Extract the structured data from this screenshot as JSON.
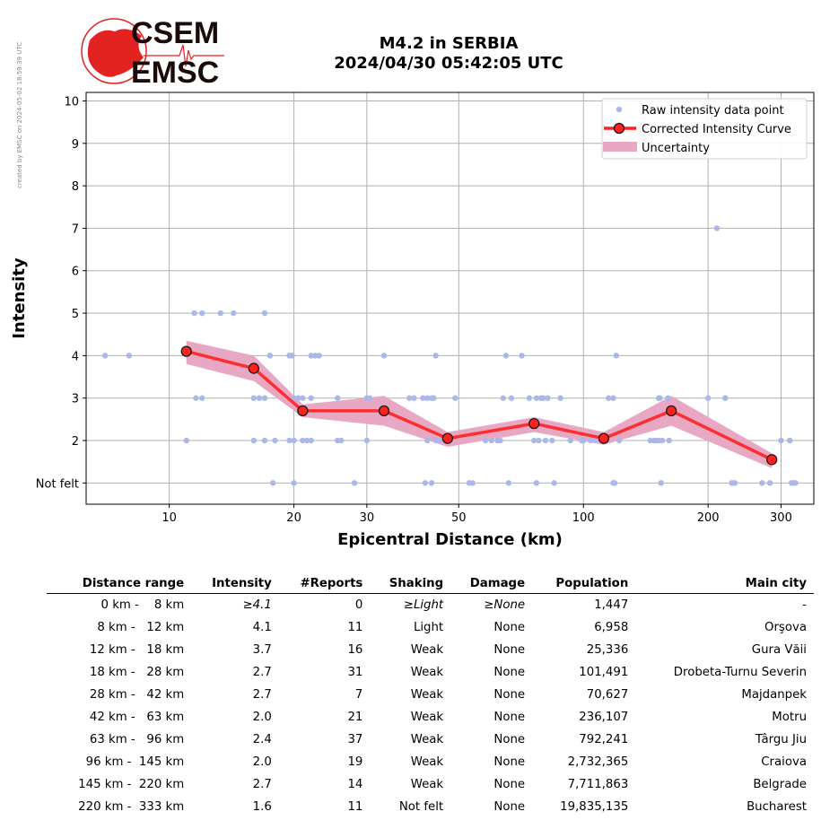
{
  "side_note": "created by EMSC on 2024-05-02 18:59:39 UTC",
  "logo": {
    "line1": "CSEM",
    "line2": "EMSC",
    "accent": "#e32222",
    "text_color": "#1a0a0a"
  },
  "title": {
    "line1": "M4.2 in SERBIA",
    "line2": "2024/04/30 05:42:05 UTC"
  },
  "chart_data": {
    "type": "scatter",
    "xlabel": "Epicentral Distance (km)",
    "ylabel": "Intensity",
    "xscale": "log",
    "xlim": [
      6.3,
      360
    ],
    "ylim": [
      0.5,
      10.2
    ],
    "xticks": [
      10,
      20,
      30,
      50,
      100,
      200,
      300
    ],
    "yticks": [
      {
        "v": 1,
        "label": "Not felt"
      },
      {
        "v": 2,
        "label": "2"
      },
      {
        "v": 3,
        "label": "3"
      },
      {
        "v": 4,
        "label": "4"
      },
      {
        "v": 5,
        "label": "5"
      },
      {
        "v": 6,
        "label": "6"
      },
      {
        "v": 7,
        "label": "7"
      },
      {
        "v": 8,
        "label": "8"
      },
      {
        "v": 9,
        "label": "9"
      },
      {
        "v": 10,
        "label": "10"
      }
    ],
    "grid": true,
    "legend_position": "top-right",
    "legend": [
      "Raw intensity data point",
      "Corrected Intensity Curve",
      "Uncertainty"
    ],
    "colors": {
      "raw": "#a9b8e8",
      "curve": "#ff2020",
      "marker_edge": "#1a1a1a",
      "band": "#e8a8c4",
      "grid": "#b0b0b0"
    },
    "curve": {
      "x": [
        11,
        16,
        21,
        33,
        47,
        76,
        112,
        163,
        285
      ],
      "y": [
        4.1,
        3.7,
        2.7,
        2.7,
        2.05,
        2.4,
        2.05,
        2.7,
        1.55
      ],
      "upper": [
        4.35,
        4.0,
        2.85,
        3.05,
        2.2,
        2.55,
        2.2,
        3.05,
        1.7
      ],
      "lower": [
        3.8,
        3.4,
        2.55,
        2.35,
        1.85,
        2.2,
        1.9,
        2.35,
        1.35
      ]
    },
    "raw": [
      [
        7,
        4
      ],
      [
        8,
        4
      ],
      [
        11,
        2
      ],
      [
        11.5,
        5
      ],
      [
        12,
        5
      ],
      [
        11.6,
        3
      ],
      [
        12,
        3
      ],
      [
        13.3,
        5
      ],
      [
        14.3,
        5
      ],
      [
        16,
        3
      ],
      [
        16,
        2
      ],
      [
        16.5,
        3
      ],
      [
        17,
        5
      ],
      [
        17,
        2
      ],
      [
        17,
        3
      ],
      [
        17.5,
        4
      ],
      [
        17.5,
        4
      ],
      [
        18,
        2
      ],
      [
        17.8,
        1
      ],
      [
        19.5,
        4
      ],
      [
        19.8,
        4
      ],
      [
        19.5,
        2
      ],
      [
        20,
        2
      ],
      [
        20,
        3
      ],
      [
        20.5,
        3
      ],
      [
        21,
        3
      ],
      [
        21,
        2
      ],
      [
        21.5,
        2
      ],
      [
        22,
        2
      ],
      [
        22,
        3
      ],
      [
        22,
        4
      ],
      [
        22.5,
        4
      ],
      [
        23,
        4
      ],
      [
        20,
        1
      ],
      [
        25.5,
        3
      ],
      [
        25.5,
        2
      ],
      [
        26,
        2
      ],
      [
        28,
        1
      ],
      [
        30,
        3
      ],
      [
        30,
        2
      ],
      [
        30.5,
        3
      ],
      [
        33,
        4
      ],
      [
        38,
        3
      ],
      [
        39,
        3
      ],
      [
        41,
        3
      ],
      [
        41.5,
        1
      ],
      [
        42,
        3
      ],
      [
        42,
        2
      ],
      [
        43,
        3
      ],
      [
        43,
        1
      ],
      [
        43.5,
        3
      ],
      [
        44,
        4
      ],
      [
        44,
        2
      ],
      [
        45,
        2
      ],
      [
        49,
        3
      ],
      [
        53,
        1
      ],
      [
        54,
        1
      ],
      [
        58,
        2
      ],
      [
        60,
        2
      ],
      [
        62,
        2
      ],
      [
        63,
        2
      ],
      [
        64,
        3
      ],
      [
        65,
        4
      ],
      [
        66,
        1
      ],
      [
        67,
        3
      ],
      [
        71,
        4
      ],
      [
        74,
        3
      ],
      [
        76,
        2
      ],
      [
        77,
        1
      ],
      [
        77,
        3
      ],
      [
        78,
        2
      ],
      [
        79,
        3
      ],
      [
        80,
        3
      ],
      [
        81,
        2
      ],
      [
        82,
        3
      ],
      [
        84,
        2
      ],
      [
        85,
        1
      ],
      [
        88,
        3
      ],
      [
        93,
        2
      ],
      [
        99,
        2
      ],
      [
        100,
        2
      ],
      [
        104,
        2
      ],
      [
        107,
        2
      ],
      [
        115,
        3
      ],
      [
        118,
        3
      ],
      [
        118,
        1
      ],
      [
        119,
        1
      ],
      [
        120,
        4
      ],
      [
        122,
        2
      ],
      [
        145,
        2
      ],
      [
        148,
        2
      ],
      [
        150,
        2
      ],
      [
        152,
        2
      ],
      [
        152,
        3
      ],
      [
        153,
        3
      ],
      [
        154,
        1
      ],
      [
        155,
        2
      ],
      [
        160,
        3
      ],
      [
        161,
        2
      ],
      [
        200,
        3
      ],
      [
        210,
        7
      ],
      [
        220,
        3
      ],
      [
        228,
        1
      ],
      [
        232,
        1
      ],
      [
        270,
        1
      ],
      [
        282,
        1
      ],
      [
        300,
        2
      ],
      [
        315,
        2
      ],
      [
        318,
        1
      ],
      [
        322,
        1
      ],
      [
        325,
        1
      ],
      [
        315,
        2
      ]
    ]
  },
  "table": {
    "headers": [
      "Distance range",
      "Intensity",
      "#Reports",
      "Shaking",
      "Damage",
      "Population",
      "Main city"
    ],
    "rows": [
      {
        "dist": "0 km -    8 km",
        "int": "≥4.1",
        "rep": "0",
        "shake": "≥Light",
        "dmg": "≥None",
        "pop": "1,447",
        "city": "-",
        "italic": true
      },
      {
        "dist": "8 km -   12 km",
        "int": "4.1",
        "rep": "11",
        "shake": "Light",
        "dmg": "None",
        "pop": "6,958",
        "city": "Orşova"
      },
      {
        "dist": "12 km -   18 km",
        "int": "3.7",
        "rep": "16",
        "shake": "Weak",
        "dmg": "None",
        "pop": "25,336",
        "city": "Gura Văii"
      },
      {
        "dist": "18 km -   28 km",
        "int": "2.7",
        "rep": "31",
        "shake": "Weak",
        "dmg": "None",
        "pop": "101,491",
        "city": "Drobeta-Turnu Severin"
      },
      {
        "dist": "28 km -   42 km",
        "int": "2.7",
        "rep": "7",
        "shake": "Weak",
        "dmg": "None",
        "pop": "70,627",
        "city": "Majdanpek"
      },
      {
        "dist": "42 km -   63 km",
        "int": "2.0",
        "rep": "21",
        "shake": "Weak",
        "dmg": "None",
        "pop": "236,107",
        "city": "Motru"
      },
      {
        "dist": "63 km -   96 km",
        "int": "2.4",
        "rep": "37",
        "shake": "Weak",
        "dmg": "None",
        "pop": "792,241",
        "city": "Târgu Jiu"
      },
      {
        "dist": "96 km -  145 km",
        "int": "2.0",
        "rep": "19",
        "shake": "Weak",
        "dmg": "None",
        "pop": "2,732,365",
        "city": "Craiova"
      },
      {
        "dist": "145 km -  220 km",
        "int": "2.7",
        "rep": "14",
        "shake": "Weak",
        "dmg": "None",
        "pop": "7,711,863",
        "city": "Belgrade"
      },
      {
        "dist": "220 km -  333 km",
        "int": "1.6",
        "rep": "11",
        "shake": "Not felt",
        "dmg": "None",
        "pop": "19,835,135",
        "city": "Bucharest"
      }
    ]
  }
}
